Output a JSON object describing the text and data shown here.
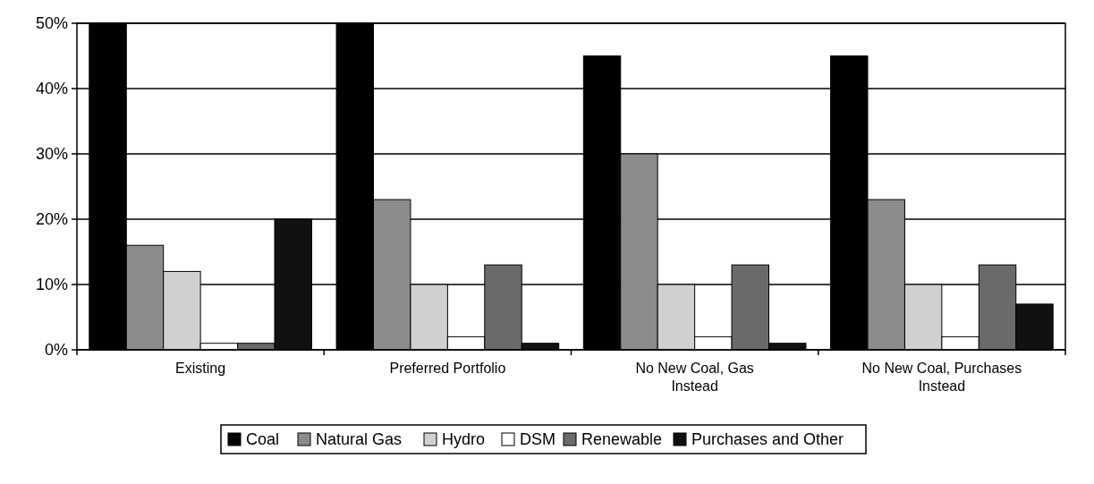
{
  "chart_data": {
    "type": "bar",
    "categories": [
      "Existing",
      "Preferred Portfolio",
      "No New Coal, Gas Instead",
      "No New Coal, Purchases Instead"
    ],
    "series": [
      {
        "name": "Coal",
        "color": "#000000",
        "values": [
          50,
          50,
          45,
          45
        ]
      },
      {
        "name": "Natural Gas",
        "color": "#8c8c8c",
        "values": [
          16,
          23,
          30,
          23
        ]
      },
      {
        "name": "Hydro",
        "color": "#d0d0d0",
        "values": [
          12,
          10,
          10,
          10
        ]
      },
      {
        "name": "DSM",
        "color": "#ffffff",
        "values": [
          1,
          2,
          2,
          2
        ]
      },
      {
        "name": "Renewable",
        "color": "#6a6a6a",
        "values": [
          1,
          13,
          13,
          13
        ]
      },
      {
        "name": "Purchases and Other",
        "color": "#111111",
        "values": [
          20,
          1,
          1,
          7
        ]
      }
    ],
    "ylim": [
      0,
      50
    ],
    "yticks": [
      {
        "value": 0,
        "label": "0%"
      },
      {
        "value": 10,
        "label": "10%"
      },
      {
        "value": 20,
        "label": "20%"
      },
      {
        "value": 30,
        "label": "30%"
      },
      {
        "value": 40,
        "label": "40%"
      },
      {
        "value": 50,
        "label": "50%"
      }
    ],
    "grid": "y",
    "legend": "bottom"
  }
}
